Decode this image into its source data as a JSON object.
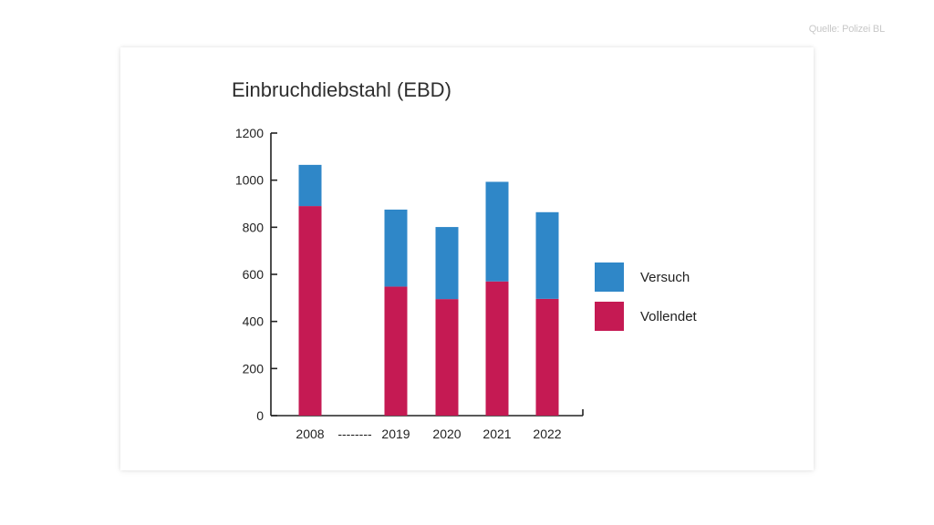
{
  "source_note": "Quelle: Polizei BL",
  "colors": {
    "versuch": "#2f87c8",
    "vollendet": "#c51a53"
  },
  "chart_data": {
    "type": "bar",
    "stacked": true,
    "title": "Einbruchdiebstahl (EBD)",
    "categories": [
      "2008",
      "2019",
      "2020",
      "2021",
      "2022"
    ],
    "gap_marker": "--------",
    "ylim": [
      0,
      1200
    ],
    "yticks": [
      0,
      200,
      400,
      600,
      800,
      1000,
      1200
    ],
    "series": [
      {
        "name": "Vollendet",
        "color": "#c51a53",
        "values": [
          890,
          548,
          495,
          570,
          496
        ]
      },
      {
        "name": "Versuch",
        "color": "#2f87c8",
        "values": [
          175,
          327,
          306,
          423,
          368
        ]
      }
    ],
    "legend": [
      {
        "label": "Versuch",
        "color": "#2f87c8"
      },
      {
        "label": "Vollendet",
        "color": "#c51a53"
      }
    ],
    "legend_position": "right"
  }
}
